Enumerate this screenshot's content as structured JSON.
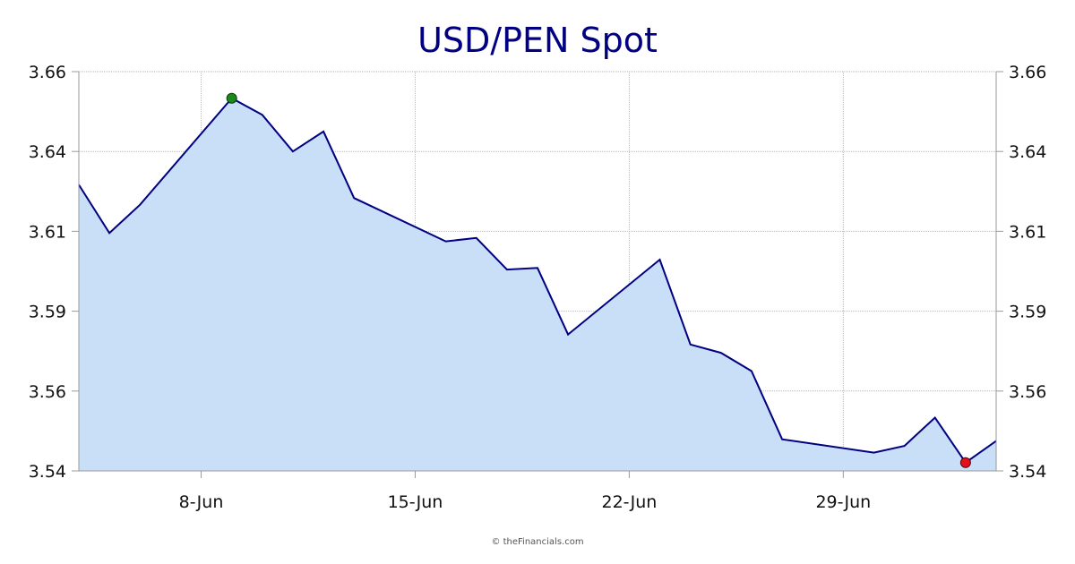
{
  "chart_data": {
    "type": "area",
    "title": "USD/PEN Spot",
    "xlabel": "",
    "ylabel": "",
    "x_tick_labels": [
      "8-Jun",
      "15-Jun",
      "22-Jun",
      "29-Jun"
    ],
    "y_tick_labels": [
      "3.66",
      "3.64",
      "3.61",
      "3.59",
      "3.56",
      "3.54"
    ],
    "ylim": [
      3.54,
      3.66
    ],
    "xlim": [
      "2023-06-04",
      "2023-07-04"
    ],
    "grid": true,
    "right_axis": true,
    "x": [
      "2023-06-04",
      "2023-06-05",
      "2023-06-06",
      "2023-06-09",
      "2023-06-10",
      "2023-06-11",
      "2023-06-12",
      "2023-06-13",
      "2023-06-16",
      "2023-06-17",
      "2023-06-18",
      "2023-06-19",
      "2023-06-20",
      "2023-06-23",
      "2023-06-24",
      "2023-06-25",
      "2023-06-26",
      "2023-06-27",
      "2023-06-30",
      "2023-07-01",
      "2023-07-02",
      "2023-07-03",
      "2023-07-04"
    ],
    "values": [
      3.626,
      3.6115,
      3.62,
      3.652,
      3.647,
      3.636,
      3.642,
      3.622,
      3.609,
      3.61,
      3.6005,
      3.601,
      3.581,
      3.6035,
      3.578,
      3.5755,
      3.57,
      3.5495,
      3.5455,
      3.5475,
      3.556,
      3.5425,
      3.549
    ],
    "high_point": {
      "x": "2023-06-09",
      "value": 3.652
    },
    "low_point": {
      "x": "2023-07-03",
      "value": 3.5425
    },
    "colors": {
      "line": "#000080",
      "fill": "#c9dff7",
      "high_marker": "#1a8a1a",
      "low_marker": "#e01020"
    }
  },
  "credit": "© theFinancials.com"
}
